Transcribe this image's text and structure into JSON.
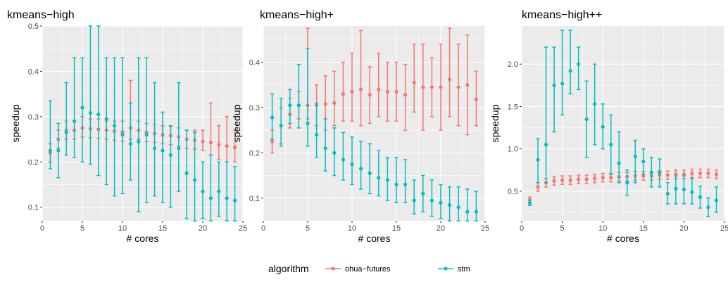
{
  "legend": {
    "title": "algorithm",
    "entries": [
      {
        "name": "ohua−futures",
        "color": "#F8766D"
      },
      {
        "name": "stm",
        "color": "#00BFC4"
      }
    ]
  },
  "chart_data": [
    {
      "type": "scatter",
      "title": "kmeans−high",
      "xlabel": "# cores",
      "ylabel": "speedup",
      "xlim": [
        0,
        25
      ],
      "ylim": [
        0.07,
        0.5
      ],
      "xticks": [
        0,
        5,
        10,
        15,
        20,
        25
      ],
      "yticks": [
        0.1,
        0.2,
        0.3,
        0.4,
        0.5
      ],
      "ytick_labels": [
        "0.1",
        "0.2",
        "0.3",
        "0.4",
        "0.5"
      ],
      "grid": true,
      "legend": "bottom",
      "x": [
        1,
        2,
        3,
        4,
        5,
        6,
        7,
        8,
        9,
        10,
        11,
        12,
        13,
        14,
        15,
        16,
        17,
        18,
        19,
        20,
        21,
        22,
        23,
        24
      ],
      "series": [
        {
          "name": "ohua−futures",
          "values": [
            0.22,
            0.25,
            0.27,
            0.27,
            0.275,
            0.273,
            0.272,
            0.27,
            0.268,
            0.266,
            0.275,
            0.27,
            0.265,
            0.263,
            0.26,
            0.258,
            0.255,
            0.25,
            0.248,
            0.245,
            0.243,
            0.238,
            0.235,
            0.232
          ],
          "lower": [
            0.2,
            0.23,
            0.25,
            0.25,
            0.255,
            0.253,
            0.252,
            0.25,
            0.248,
            0.246,
            0.25,
            0.25,
            0.245,
            0.243,
            0.24,
            0.238,
            0.235,
            0.23,
            0.228,
            0.225,
            0.215,
            0.205,
            0.2,
            0.2
          ],
          "upper": [
            0.24,
            0.27,
            0.29,
            0.29,
            0.3,
            0.295,
            0.295,
            0.29,
            0.29,
            0.29,
            0.38,
            0.29,
            0.285,
            0.283,
            0.28,
            0.278,
            0.275,
            0.27,
            0.27,
            0.27,
            0.33,
            0.28,
            0.3,
            0.27
          ]
        },
        {
          "name": "stm",
          "values": [
            0.225,
            0.225,
            0.265,
            0.29,
            0.32,
            0.308,
            0.305,
            0.295,
            0.28,
            0.26,
            0.24,
            0.245,
            0.26,
            0.23,
            0.225,
            0.215,
            0.23,
            0.175,
            0.16,
            0.135,
            0.12,
            0.135,
            0.12,
            0.115
          ],
          "lower": [
            0.185,
            0.165,
            0.215,
            0.21,
            0.2,
            0.195,
            0.17,
            0.15,
            0.125,
            0.13,
            0.16,
            0.09,
            0.11,
            0.125,
            0.11,
            0.1,
            0.135,
            0.075,
            0.07,
            0.075,
            0.07,
            0.08,
            0.07,
            0.07
          ],
          "upper": [
            0.335,
            0.285,
            0.375,
            0.43,
            0.43,
            0.5,
            0.5,
            0.43,
            0.43,
            0.43,
            0.33,
            0.43,
            0.43,
            0.375,
            0.31,
            0.28,
            0.375,
            0.27,
            0.265,
            0.2,
            0.215,
            0.2,
            0.2,
            0.19
          ]
        }
      ]
    },
    {
      "type": "scatter",
      "title": "kmeans−high+",
      "xlabel": "# cores",
      "ylabel": "speedup",
      "xlim": [
        0,
        25
      ],
      "ylim": [
        0.05,
        0.48
      ],
      "xticks": [
        0,
        5,
        10,
        15,
        20,
        25
      ],
      "yticks": [
        0.1,
        0.2,
        0.3,
        0.4
      ],
      "ytick_labels": [
        "0.1",
        "0.2",
        "0.3",
        "0.4"
      ],
      "grid": true,
      "legend": "bottom",
      "x": [
        1,
        2,
        3,
        4,
        5,
        6,
        7,
        8,
        9,
        10,
        11,
        12,
        13,
        14,
        15,
        16,
        17,
        18,
        19,
        20,
        21,
        22,
        23,
        24
      ],
      "series": [
        {
          "name": "ohua−futures",
          "values": [
            0.225,
            0.26,
            0.285,
            0.305,
            0.305,
            0.305,
            0.308,
            0.31,
            0.33,
            0.335,
            0.34,
            0.328,
            0.34,
            0.335,
            0.335,
            0.328,
            0.355,
            0.345,
            0.345,
            0.345,
            0.362,
            0.345,
            0.35,
            0.318
          ],
          "lower": [
            0.2,
            0.22,
            0.255,
            0.275,
            0.275,
            0.26,
            0.25,
            0.26,
            0.27,
            0.27,
            0.26,
            0.265,
            0.28,
            0.27,
            0.27,
            0.25,
            0.29,
            0.25,
            0.28,
            0.25,
            0.28,
            0.26,
            0.24,
            0.26
          ],
          "upper": [
            0.25,
            0.3,
            0.32,
            0.335,
            0.475,
            0.35,
            0.37,
            0.38,
            0.4,
            0.42,
            0.47,
            0.39,
            0.42,
            0.4,
            0.4,
            0.395,
            0.44,
            0.44,
            0.41,
            0.44,
            0.475,
            0.44,
            0.46,
            0.38
          ]
        },
        {
          "name": "stm",
          "values": [
            0.278,
            0.26,
            0.305,
            0.305,
            0.265,
            0.24,
            0.21,
            0.2,
            0.185,
            0.175,
            0.165,
            0.155,
            0.145,
            0.14,
            0.13,
            0.13,
            0.095,
            0.11,
            0.095,
            0.09,
            0.085,
            0.08,
            0.07,
            0.07
          ],
          "lower": [
            0.23,
            0.215,
            0.265,
            0.255,
            0.215,
            0.19,
            0.16,
            0.15,
            0.14,
            0.13,
            0.12,
            0.11,
            0.105,
            0.095,
            0.09,
            0.09,
            0.065,
            0.07,
            0.06,
            0.055,
            0.05,
            0.05,
            0.05,
            0.05
          ],
          "upper": [
            0.33,
            0.32,
            0.34,
            0.395,
            0.43,
            0.31,
            0.275,
            0.255,
            0.245,
            0.235,
            0.225,
            0.22,
            0.205,
            0.19,
            0.19,
            0.185,
            0.14,
            0.15,
            0.14,
            0.13,
            0.125,
            0.125,
            0.12,
            0.115
          ]
        }
      ]
    },
    {
      "type": "scatter",
      "title": "kmeans−high++",
      "xlabel": "# cores",
      "ylabel": "speedup",
      "xlim": [
        0,
        25
      ],
      "ylim": [
        0.15,
        2.45
      ],
      "xticks": [
        0,
        5,
        10,
        15,
        20,
        25
      ],
      "yticks": [
        0.5,
        1.0,
        1.5,
        2.0
      ],
      "ytick_labels": [
        "0.5",
        "1.0",
        "1.5",
        "2.0"
      ],
      "grid": true,
      "legend": "bottom",
      "x": [
        1,
        2,
        3,
        4,
        5,
        6,
        7,
        8,
        9,
        10,
        11,
        12,
        13,
        14,
        15,
        16,
        17,
        18,
        19,
        20,
        21,
        22,
        23,
        24
      ],
      "series": [
        {
          "name": "ohua−futures",
          "values": [
            0.4,
            0.55,
            0.6,
            0.62,
            0.63,
            0.63,
            0.64,
            0.64,
            0.65,
            0.66,
            0.66,
            0.67,
            0.67,
            0.68,
            0.68,
            0.68,
            0.69,
            0.69,
            0.7,
            0.7,
            0.71,
            0.71,
            0.71,
            0.7
          ],
          "lower": [
            0.37,
            0.5,
            0.55,
            0.57,
            0.58,
            0.58,
            0.59,
            0.59,
            0.6,
            0.61,
            0.61,
            0.62,
            0.62,
            0.63,
            0.63,
            0.63,
            0.64,
            0.64,
            0.65,
            0.65,
            0.66,
            0.66,
            0.66,
            0.65
          ],
          "upper": [
            0.43,
            0.6,
            0.65,
            0.67,
            0.68,
            0.68,
            0.69,
            0.69,
            0.7,
            0.71,
            0.71,
            0.72,
            0.72,
            0.73,
            0.73,
            0.73,
            0.74,
            0.74,
            0.75,
            0.75,
            0.76,
            0.76,
            0.76,
            0.75
          ]
        },
        {
          "name": "stm",
          "values": [
            0.36,
            0.87,
            1.05,
            1.75,
            1.77,
            1.92,
            2.0,
            1.35,
            1.53,
            1.26,
            1.05,
            0.83,
            0.6,
            0.91,
            0.85,
            0.72,
            0.72,
            0.47,
            0.53,
            0.52,
            0.49,
            0.43,
            0.31,
            0.39
          ],
          "lower": [
            0.33,
            0.6,
            0.6,
            1.2,
            1.4,
            1.65,
            1.7,
            0.9,
            1.05,
            1.0,
            0.7,
            0.6,
            0.45,
            0.6,
            0.7,
            0.55,
            0.55,
            0.35,
            0.35,
            0.35,
            0.35,
            0.3,
            0.2,
            0.25
          ],
          "upper": [
            0.39,
            1.12,
            2.2,
            2.2,
            2.4,
            2.4,
            2.2,
            1.8,
            2.0,
            1.53,
            1.4,
            1.2,
            0.75,
            1.1,
            1.0,
            0.9,
            0.88,
            0.6,
            0.68,
            0.68,
            0.65,
            0.56,
            0.42,
            0.55
          ]
        }
      ]
    }
  ]
}
